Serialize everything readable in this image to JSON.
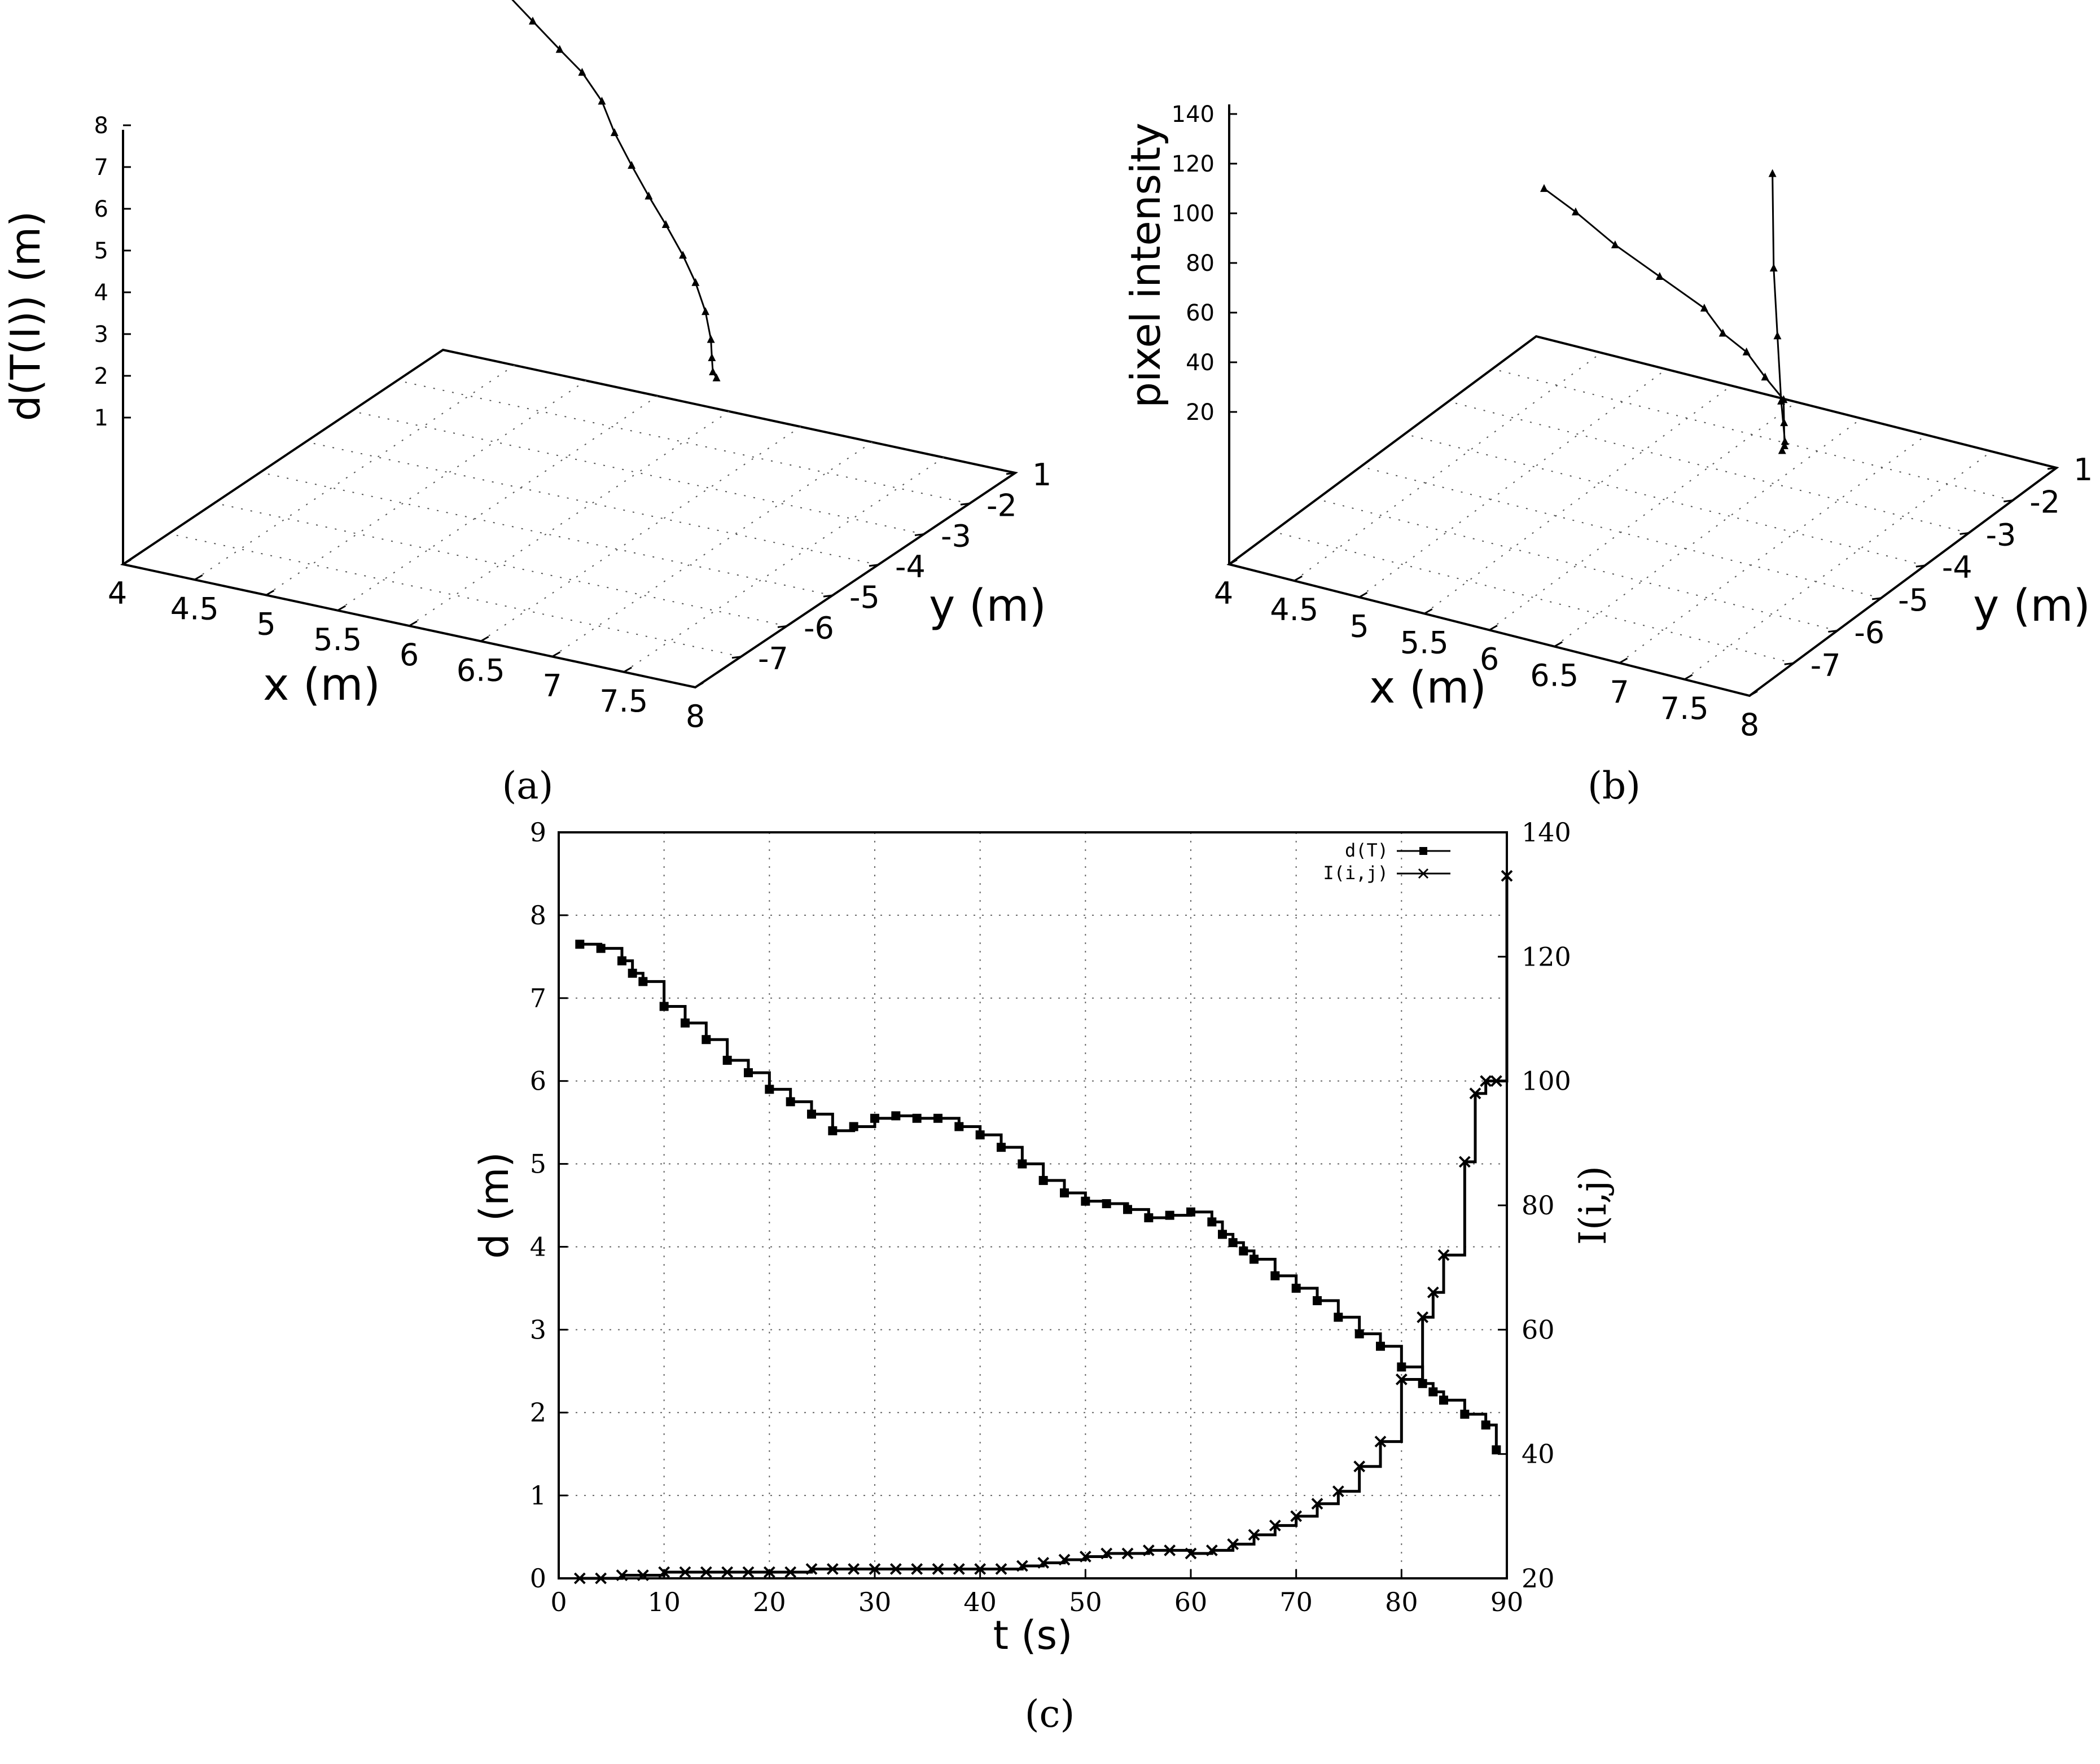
{
  "figure": {
    "panels": [
      "(a)",
      "(b)",
      "(c)"
    ]
  },
  "chart_data": [
    {
      "panel": "(a)",
      "type": "line",
      "projection": "3d",
      "zlabel": "d(T(I)) (m)",
      "xlabel": "x (m)",
      "ylabel": "y (m)",
      "z_ticks": [
        "1",
        "2",
        "3",
        "4",
        "5",
        "6",
        "7",
        "8"
      ],
      "x_ticks": [
        "4",
        "4.5",
        "5",
        "5.5",
        "6",
        "6.5",
        "7",
        "7.5",
        "8"
      ],
      "y_ticks": [
        "1",
        "-2",
        "-3",
        "-4",
        "-5",
        "-6",
        "-7"
      ],
      "grid": true,
      "series": [
        {
          "points": [
            [
              4.1,
              -1.1,
              7.4
            ],
            [
              4.4,
              -1.4,
              7.3
            ],
            [
              4.7,
              -1.7,
              7.15
            ],
            [
              5.0,
              -2.0,
              6.95
            ],
            [
              5.3,
              -2.3,
              6.75
            ],
            [
              5.55,
              -2.55,
              6.6
            ],
            [
              5.8,
              -2.85,
              6.35
            ],
            [
              6.0,
              -3.15,
              6.0
            ],
            [
              6.25,
              -3.5,
              5.7
            ],
            [
              6.5,
              -3.85,
              5.45
            ],
            [
              6.75,
              -4.2,
              5.25
            ],
            [
              7.0,
              -4.55,
              5.0
            ],
            [
              7.2,
              -4.85,
              4.75
            ],
            [
              7.4,
              -5.2,
              4.5
            ],
            [
              7.55,
              -5.5,
              4.2
            ],
            [
              7.65,
              -5.75,
              4.05
            ],
            [
              7.75,
              -6.0,
              4.0
            ],
            [
              7.85,
              -6.2,
              4.1
            ]
          ]
        }
      ]
    },
    {
      "panel": "(b)",
      "type": "line",
      "projection": "3d",
      "zlabel": "pixel intensity",
      "xlabel": "x (m)",
      "ylabel": "y (m)",
      "z_ticks": [
        "20",
        "40",
        "60",
        "80",
        "100",
        "120",
        "140"
      ],
      "x_ticks": [
        "4",
        "4.5",
        "5",
        "5.5",
        "6",
        "6.5",
        "7",
        "7.5",
        "8"
      ],
      "y_ticks": [
        "1",
        "-2",
        "-3",
        "-4",
        "-5",
        "-6",
        "-7"
      ],
      "grid": true,
      "series": [
        {
          "points": [
            [
              4.1,
              -1.1,
              21
            ],
            [
              4.5,
              -1.5,
              23
            ],
            [
              5.0,
              -2.0,
              24
            ],
            [
              5.5,
              -2.4,
              24
            ],
            [
              6.0,
              -2.8,
              24
            ],
            [
              6.3,
              -3.2,
              24
            ],
            [
              6.6,
              -3.5,
              25
            ],
            [
              6.9,
              -3.9,
              25
            ],
            [
              7.2,
              -4.3,
              26
            ],
            [
              7.4,
              -4.8,
              27
            ],
            [
              7.6,
              -5.3,
              28
            ],
            [
              7.7,
              -5.6,
              32
            ],
            [
              7.8,
              -5.8,
              40
            ],
            [
              7.85,
              -6.0,
              60
            ],
            [
              7.9,
              -6.2,
              90
            ],
            [
              7.93,
              -6.35,
              120
            ],
            [
              7.96,
              -6.45,
              160
            ]
          ]
        }
      ]
    },
    {
      "panel": "(c)",
      "type": "line",
      "xlabel": "t (s)",
      "ylabel": "d (m)",
      "y2label": "I(i,j)",
      "xlim": [
        0,
        90
      ],
      "ylim": [
        0,
        9
      ],
      "y2lim": [
        20,
        140
      ],
      "x_ticks": [
        0,
        10,
        20,
        30,
        40,
        50,
        60,
        70,
        80,
        90
      ],
      "y_ticks": [
        0,
        1,
        2,
        3,
        4,
        5,
        6,
        7,
        8,
        9
      ],
      "y2_ticks": [
        20,
        40,
        60,
        80,
        100,
        120,
        140
      ],
      "grid": true,
      "legend_position": "top-right",
      "series": [
        {
          "name": "d(T)",
          "axis": "left",
          "marker": "square",
          "x": [
            2,
            4,
            6,
            7,
            8,
            10,
            12,
            14,
            16,
            18,
            20,
            22,
            24,
            26,
            28,
            30,
            32,
            34,
            36,
            38,
            40,
            42,
            44,
            46,
            48,
            50,
            52,
            54,
            56,
            58,
            60,
            62,
            63,
            64,
            65,
            66,
            68,
            70,
            72,
            74,
            76,
            78,
            80,
            82,
            83,
            84,
            86,
            88,
            89
          ],
          "y": [
            7.65,
            7.6,
            7.45,
            7.3,
            7.2,
            6.9,
            6.7,
            6.5,
            6.25,
            6.1,
            5.9,
            5.75,
            5.6,
            5.4,
            5.45,
            5.55,
            5.58,
            5.55,
            5.55,
            5.45,
            5.35,
            5.2,
            5.0,
            4.8,
            4.65,
            4.55,
            4.52,
            4.45,
            4.35,
            4.38,
            4.42,
            4.3,
            4.15,
            4.05,
            3.95,
            3.85,
            3.65,
            3.5,
            3.35,
            3.15,
            2.95,
            2.8,
            2.55,
            2.35,
            2.25,
            2.15,
            1.98,
            1.85,
            1.55
          ]
        },
        {
          "name": "I(i,j)",
          "axis": "right",
          "marker": "x",
          "x": [
            2,
            4,
            6,
            8,
            10,
            12,
            14,
            16,
            18,
            20,
            22,
            24,
            26,
            28,
            30,
            32,
            34,
            36,
            38,
            40,
            42,
            44,
            46,
            48,
            50,
            52,
            54,
            56,
            58,
            60,
            62,
            64,
            66,
            68,
            70,
            72,
            74,
            76,
            78,
            80,
            82,
            83,
            84,
            86,
            87,
            88,
            89,
            90
          ],
          "y": [
            20,
            20,
            20.5,
            20.5,
            21,
            21,
            21,
            21,
            21,
            21,
            21,
            21.5,
            21.5,
            21.5,
            21.5,
            21.5,
            21.5,
            21.5,
            21.5,
            21.5,
            21.5,
            22,
            22.5,
            23,
            23.5,
            24,
            24,
            24.5,
            24.5,
            24,
            24.5,
            25.5,
            27,
            28.5,
            30,
            32,
            34,
            38,
            42,
            52,
            62,
            66,
            72,
            87,
            98,
            100,
            100,
            133
          ]
        }
      ]
    }
  ]
}
